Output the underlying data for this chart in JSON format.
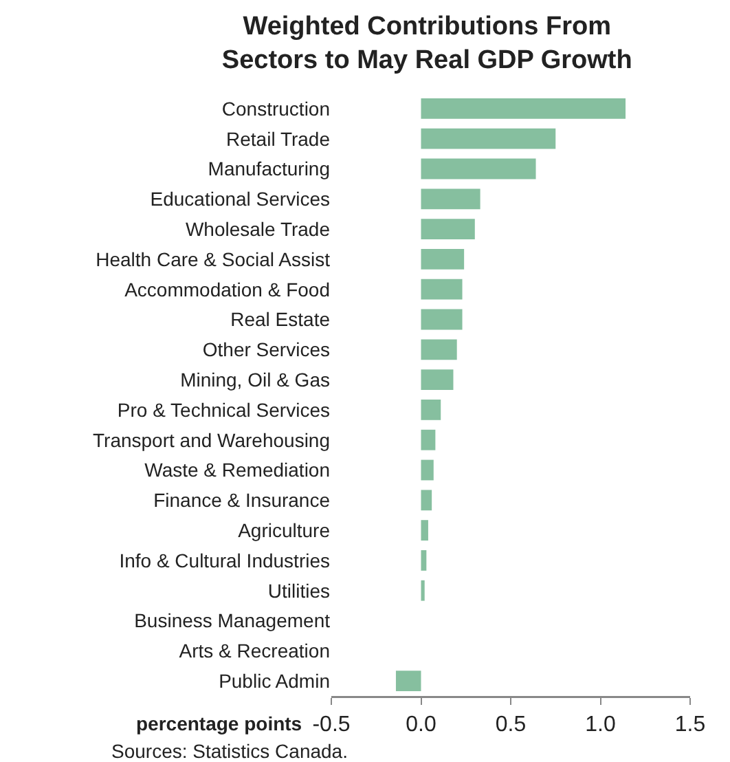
{
  "chart_data": {
    "type": "bar",
    "orientation": "horizontal",
    "title": "Weighted Contributions From\nSectors to May Real GDP Growth",
    "xlabel": "percentage points",
    "categories": [
      "Construction",
      "Retail Trade",
      "Manufacturing",
      "Educational Services",
      "Wholesale Trade",
      "Health Care & Social Assist",
      "Accommodation & Food",
      "Real Estate",
      "Other Services",
      "Mining, Oil & Gas",
      "Pro & Technical Services",
      "Transport and Warehousing",
      "Waste & Remediation",
      "Finance & Insurance",
      "Agriculture",
      "Info & Cultural Industries",
      "Utilities",
      "Business Management",
      "Arts & Recreation",
      "Public Admin"
    ],
    "values": [
      1.14,
      0.75,
      0.64,
      0.33,
      0.3,
      0.24,
      0.23,
      0.23,
      0.2,
      0.18,
      0.11,
      0.08,
      0.07,
      0.06,
      0.04,
      0.03,
      0.02,
      0,
      0,
      -0.14
    ],
    "color": "#86bf9f",
    "xlim": [
      -0.5,
      1.5
    ],
    "xticks": [
      {
        "value": -0.5,
        "label": "-0.5"
      },
      {
        "value": 0,
        "label": "0.0"
      },
      {
        "value": 0.5,
        "label": "0.5"
      },
      {
        "value": 1,
        "label": "1.0"
      },
      {
        "value": 1.5,
        "label": "1.5"
      }
    ],
    "grid": false,
    "legend": false,
    "annotations": [
      "Sources: Statistics Canada."
    ]
  }
}
